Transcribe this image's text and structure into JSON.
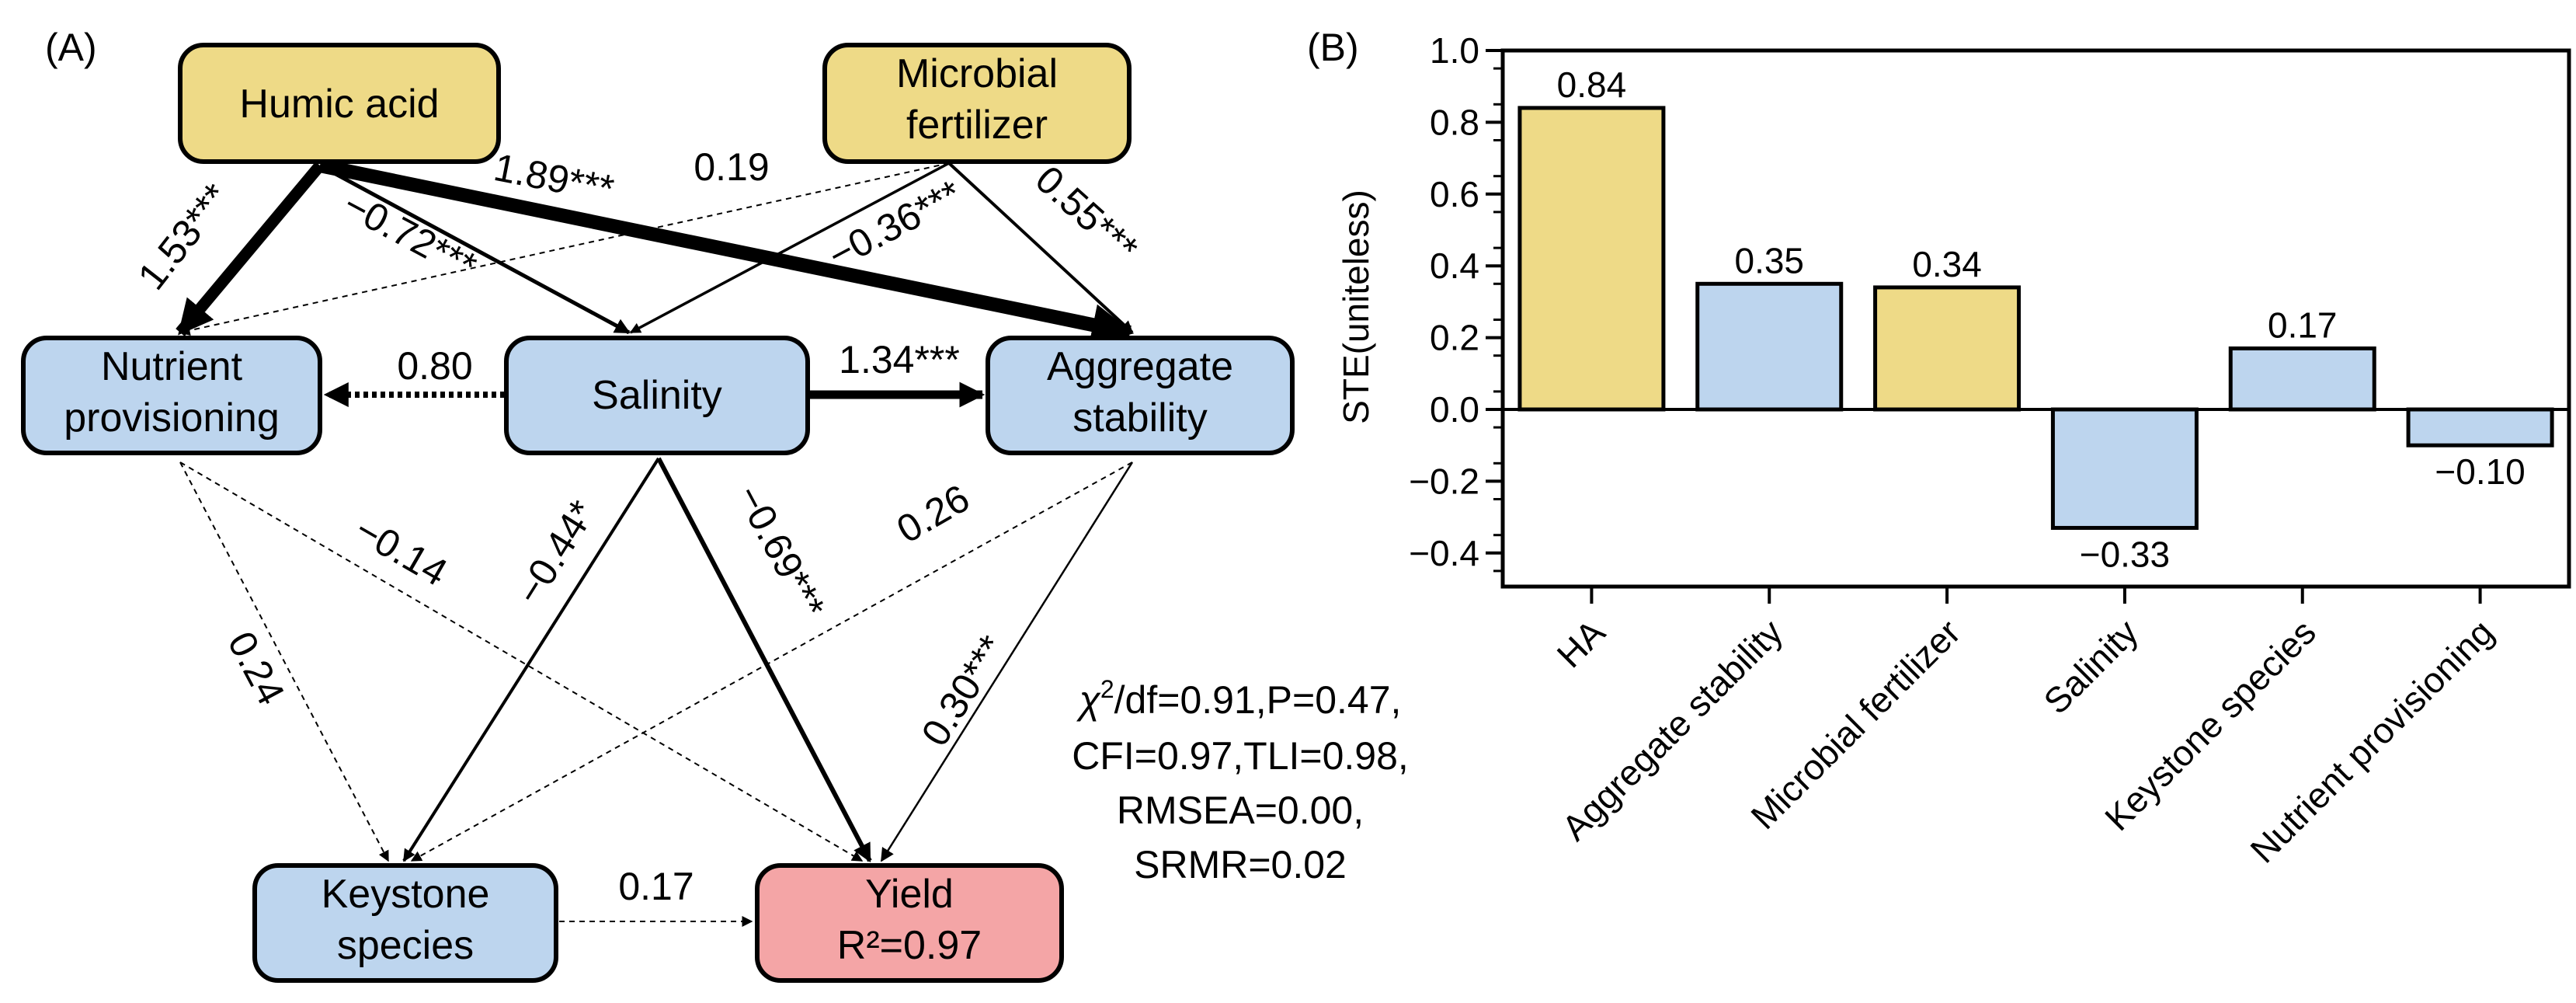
{
  "panel_a": {
    "label": "(A)",
    "nodes": {
      "humic": {
        "lines": [
          "Humic acid"
        ],
        "fill": "#EEDA87"
      },
      "microbial": {
        "lines": [
          "Microbial",
          "fertilizer"
        ],
        "fill": "#EEDA87"
      },
      "nutrient": {
        "lines": [
          "Nutrient",
          "provisioning"
        ],
        "fill": "#BDD5EE"
      },
      "salinity": {
        "lines": [
          "Salinity"
        ],
        "fill": "#BDD5EE"
      },
      "aggregate": {
        "lines": [
          "Aggregate",
          "stability"
        ],
        "fill": "#BDD5EE"
      },
      "keystone": {
        "lines": [
          "Keystone",
          "species"
        ],
        "fill": "#BDD5EE"
      },
      "yield": {
        "lines": [
          "Yield",
          "R²=0.97"
        ],
        "fill": "#F4A5A6"
      }
    },
    "paths": [
      {
        "from": "humic",
        "to": "nutrient",
        "coef": "1.53***"
      },
      {
        "from": "humic",
        "to": "salinity",
        "coef": "−0.72***"
      },
      {
        "from": "humic",
        "to": "aggregate",
        "coef": "1.89***"
      },
      {
        "from": "microbial",
        "to": "nutrient",
        "coef": "0.19"
      },
      {
        "from": "microbial",
        "to": "salinity",
        "coef": "−0.36***"
      },
      {
        "from": "microbial",
        "to": "aggregate",
        "coef": "0.55***"
      },
      {
        "from": "salinity",
        "to": "nutrient",
        "coef": "0.80"
      },
      {
        "from": "salinity",
        "to": "aggregate",
        "coef": "1.34***"
      },
      {
        "from": "salinity",
        "to": "keystone",
        "coef": "−0.44*"
      },
      {
        "from": "salinity",
        "to": "yield",
        "coef": "−0.69***"
      },
      {
        "from": "nutrient",
        "to": "keystone",
        "coef": "0.24"
      },
      {
        "from": "nutrient",
        "to": "yield",
        "coef": "−0.14"
      },
      {
        "from": "aggregate",
        "to": "keystone",
        "coef": "0.26"
      },
      {
        "from": "aggregate",
        "to": "yield",
        "coef": "0.30***"
      },
      {
        "from": "keystone",
        "to": "yield",
        "coef": "0.17"
      }
    ],
    "fit_stats": {
      "chi_symbol": "χ",
      "chi_sup": "2",
      "line1_rest": "/df=0.91,P=0.47,",
      "line2": "CFI=0.97,TLI=0.98,",
      "line3": "RMSEA=0.00,",
      "line4": "SRMR=0.02"
    }
  },
  "chart_data": {
    "type": "bar",
    "panel_label": "(B)",
    "ylabel": "STE(uniteless)",
    "ylim": [
      -0.5,
      1.0
    ],
    "yticks": [
      "1.0",
      "0.8",
      "0.6",
      "0.4",
      "0.2",
      "0.0",
      "−0.2",
      "−0.4"
    ],
    "ytick_values": [
      1.0,
      0.8,
      0.6,
      0.4,
      0.2,
      0.0,
      -0.2,
      -0.4
    ],
    "categories": [
      "HA",
      "Aggregate stability",
      "Microbial fertilizer",
      "Salinity",
      "Keystone species",
      "Nutrient provisioning"
    ],
    "values": [
      0.84,
      0.35,
      0.34,
      -0.33,
      0.17,
      -0.1
    ],
    "value_labels": [
      "0.84",
      "0.35",
      "0.34",
      "−0.33",
      "0.17",
      "−0.10"
    ],
    "colors": [
      "#EEDA87",
      "#BDD5EE",
      "#EEDA87",
      "#BDD5EE",
      "#BDD5EE",
      "#BDD5EE"
    ]
  }
}
